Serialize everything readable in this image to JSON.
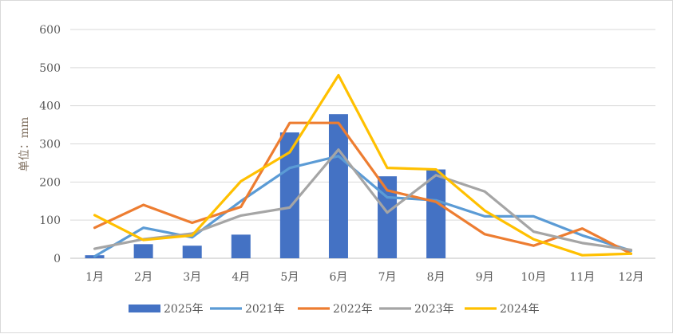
{
  "chart_data": {
    "type": "bar+line",
    "title": "",
    "xlabel": "",
    "ylabel": "单位：mm",
    "ylim": [
      0,
      600
    ],
    "yticks": [
      "0",
      "100",
      "200",
      "300",
      "400",
      "500",
      "600"
    ],
    "categories": [
      "1月",
      "2月",
      "3月",
      "4月",
      "5月",
      "6月",
      "7月",
      "8月",
      "9月",
      "10月",
      "11月",
      "12月"
    ],
    "grid": true,
    "legend_position": "bottom",
    "bar_series": {
      "name": "2025年",
      "color": "#4472C4",
      "values": [
        8,
        37,
        33,
        62,
        330,
        378,
        215,
        233,
        null,
        null,
        null,
        null
      ]
    },
    "line_series": [
      {
        "name": "2021年",
        "color": "#5B9BD5",
        "values": [
          5,
          80,
          55,
          150,
          237,
          268,
          160,
          152,
          110,
          110,
          60,
          20
        ]
      },
      {
        "name": "2022年",
        "color": "#ED7D31",
        "values": [
          80,
          140,
          93,
          135,
          355,
          355,
          178,
          148,
          63,
          33,
          78,
          12
        ]
      },
      {
        "name": "2023年",
        "color": "#A5A5A5",
        "values": [
          25,
          50,
          65,
          112,
          133,
          285,
          120,
          218,
          175,
          70,
          40,
          22
        ]
      },
      {
        "name": "2024年",
        "color": "#FFC000",
        "values": [
          113,
          48,
          60,
          202,
          278,
          480,
          237,
          233,
          125,
          50,
          8,
          12
        ]
      }
    ]
  }
}
